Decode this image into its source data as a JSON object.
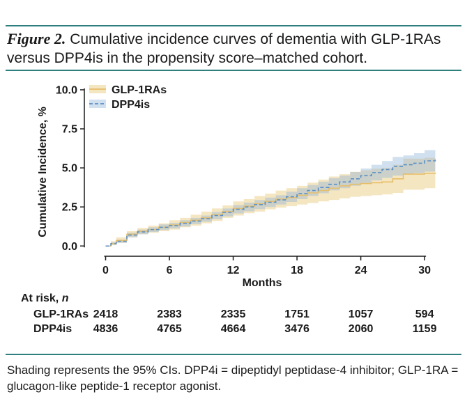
{
  "caption": {
    "figure_label": "Figure 2.",
    "text": " Cumulative incidence curves of dementia with GLP-1RAs versus DPP4is in the propensity score–matched cohort."
  },
  "chart_data": {
    "type": "line",
    "title": "",
    "xlabel": "Months",
    "ylabel": "Cumulative Incidence, %",
    "xlim": [
      -2,
      31.5
    ],
    "ylim": [
      -0.3,
      10.4
    ],
    "xticks": [
      0,
      6,
      12,
      18,
      24,
      30
    ],
    "xtick_labels": [
      "0",
      "6",
      "12",
      "18",
      "24",
      "30"
    ],
    "yticks": [
      0,
      2.5,
      5,
      7.5,
      10
    ],
    "ytick_labels": [
      "0.0",
      "2.5",
      "5.0",
      "7.5",
      "10.0"
    ],
    "legend_position": "top-left",
    "series": [
      {
        "name": "GLP-1RAs",
        "color": "#e6be6a",
        "style": "solid",
        "x": [
          0,
          0.5,
          1,
          2,
          3,
          4,
          5,
          6,
          7,
          8,
          9,
          10,
          11,
          12,
          13,
          14,
          15,
          16,
          17,
          18,
          19,
          20,
          21,
          22,
          23,
          24,
          25,
          26,
          27,
          28,
          29,
          30,
          31
        ],
        "y": [
          0,
          0.15,
          0.35,
          0.75,
          0.95,
          1.05,
          1.2,
          1.35,
          1.5,
          1.65,
          1.8,
          2.0,
          2.2,
          2.4,
          2.55,
          2.7,
          2.85,
          3.0,
          3.1,
          3.25,
          3.4,
          3.55,
          3.7,
          3.85,
          3.95,
          4.0,
          4.05,
          4.1,
          4.3,
          4.6,
          4.6,
          4.65,
          4.7
        ],
        "lower": [
          0,
          0.05,
          0.2,
          0.55,
          0.75,
          0.85,
          0.95,
          1.05,
          1.2,
          1.3,
          1.45,
          1.6,
          1.8,
          1.95,
          2.1,
          2.2,
          2.35,
          2.45,
          2.55,
          2.65,
          2.75,
          2.85,
          2.95,
          3.05,
          3.15,
          3.2,
          3.25,
          3.3,
          3.4,
          3.6,
          3.6,
          3.7,
          3.75
        ],
        "upper": [
          0,
          0.3,
          0.55,
          0.95,
          1.15,
          1.3,
          1.45,
          1.65,
          1.8,
          2.0,
          2.2,
          2.4,
          2.6,
          2.85,
          3.0,
          3.2,
          3.35,
          3.55,
          3.7,
          3.85,
          4.05,
          4.25,
          4.45,
          4.6,
          4.75,
          4.85,
          4.95,
          5.0,
          5.2,
          5.6,
          5.6,
          5.65,
          5.7
        ]
      },
      {
        "name": "DPP4is",
        "color": "#5b8fc4",
        "style": "dashed",
        "x": [
          0,
          0.5,
          1,
          2,
          3,
          4,
          5,
          6,
          7,
          8,
          9,
          10,
          11,
          12,
          13,
          14,
          15,
          16,
          17,
          18,
          19,
          20,
          21,
          22,
          23,
          24,
          25,
          26,
          27,
          28,
          29,
          30,
          31
        ],
        "y": [
          0,
          0.15,
          0.3,
          0.7,
          0.9,
          1.05,
          1.2,
          1.3,
          1.45,
          1.6,
          1.75,
          1.95,
          2.15,
          2.35,
          2.5,
          2.65,
          2.8,
          2.95,
          3.15,
          3.35,
          3.55,
          3.75,
          3.95,
          4.1,
          4.3,
          4.5,
          4.7,
          4.9,
          5.1,
          5.2,
          5.3,
          5.45,
          5.65
        ],
        "lower": [
          0,
          0.08,
          0.2,
          0.55,
          0.75,
          0.9,
          1.02,
          1.12,
          1.25,
          1.4,
          1.55,
          1.72,
          1.9,
          2.08,
          2.22,
          2.36,
          2.5,
          2.65,
          2.82,
          3.0,
          3.2,
          3.38,
          3.56,
          3.7,
          3.86,
          4.04,
          4.2,
          4.36,
          4.5,
          4.6,
          4.66,
          4.76,
          4.9
        ],
        "upper": [
          0,
          0.25,
          0.4,
          0.85,
          1.05,
          1.2,
          1.38,
          1.48,
          1.65,
          1.8,
          1.95,
          2.18,
          2.4,
          2.62,
          2.78,
          2.94,
          3.1,
          3.25,
          3.48,
          3.7,
          3.9,
          4.12,
          4.34,
          4.5,
          4.74,
          4.96,
          5.2,
          5.44,
          5.7,
          5.8,
          5.94,
          6.14,
          6.5
        ]
      }
    ],
    "at_risk": {
      "title": "At risk, ",
      "title_n": "n",
      "rows": [
        {
          "label": "GLP-1RAs",
          "values": [
            "2418",
            "2383",
            "2335",
            "1751",
            "1057",
            "594"
          ]
        },
        {
          "label": "DPP4is",
          "values": [
            "4836",
            "4765",
            "4664",
            "3476",
            "2060",
            "1159"
          ]
        }
      ]
    }
  },
  "footnote": "Shading represents the 95% CIs. DPP4i = dipeptidyl peptidase-4 inhibitor; GLP-1RA = glucagon-like peptide-1 receptor agonist."
}
